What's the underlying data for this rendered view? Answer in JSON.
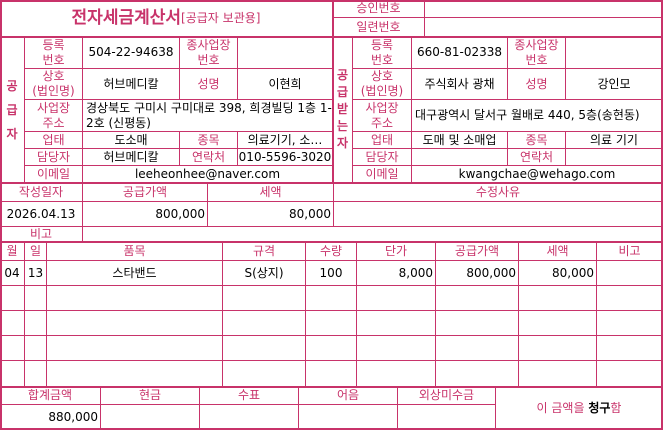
{
  "header": {
    "title": "전자세금계산서",
    "subtitle": "[공급자 보관용]",
    "approval_label": "승인번호",
    "approval_value": "",
    "serial_label": "일련번호",
    "serial_value": ""
  },
  "labels": {
    "reg_no": "등록\n번호",
    "sub_reg_no": "종사업장\n번호",
    "company": "상호\n(법인명)",
    "name": "성명",
    "address": "사업장\n주소",
    "business_type": "업태",
    "item_type": "종목",
    "manager": "담당자",
    "contact": "연락처",
    "email": "이메일"
  },
  "supplier": {
    "section_label": [
      "공",
      "급",
      "자"
    ],
    "reg_no": "504-22-94638",
    "sub_reg_no": "",
    "company": "허브메디칼",
    "name": "이현희",
    "address": "경상북도 구미시 구미대로 398, 희경빌딩 1층 1-2호 (신평동)",
    "business_type": "도소매",
    "item_type": "의료기기, 소…",
    "manager": "허브메디칼",
    "contact": "010-5596-3020",
    "email": "leeheonhee@naver.com"
  },
  "receiver": {
    "section_label": [
      "공",
      "급",
      "받",
      "는",
      "자"
    ],
    "reg_no": "660-81-02338",
    "sub_reg_no": "",
    "company": "주식회사 광채",
    "name": "강인모",
    "address": "대구광역시 달서구 월배로 440, 5층(송현동)",
    "business_type": "도매 및 소매업",
    "item_type": "의료 기기",
    "manager": "",
    "contact": "",
    "email": "kwangchae@wehago.com"
  },
  "summary": {
    "date_label": "작성일자",
    "supply_label": "공급가액",
    "tax_label": "세액",
    "reason_label": "수정사유",
    "date": "2026.04.13",
    "supply": "800,000",
    "tax": "80,000",
    "reason": "",
    "note_label": "비고",
    "note": ""
  },
  "items": {
    "headers": [
      "월",
      "일",
      "품목",
      "규격",
      "수량",
      "단가",
      "공급가액",
      "세액",
      "비고"
    ],
    "rows": [
      [
        "04",
        "13",
        "스타밴드",
        "S(상지)",
        "100",
        "8,000",
        "800,000",
        "80,000",
        ""
      ]
    ]
  },
  "footer": {
    "headers": [
      "합계금액",
      "현금",
      "수표",
      "어음",
      "외상미수금"
    ],
    "values": [
      "880,000",
      "",
      "",
      "",
      ""
    ],
    "claim_prefix": "이 금액을 ",
    "claim_word": "청구",
    "claim_suffix": "함"
  },
  "colors": {
    "accent": "#c8336a"
  }
}
